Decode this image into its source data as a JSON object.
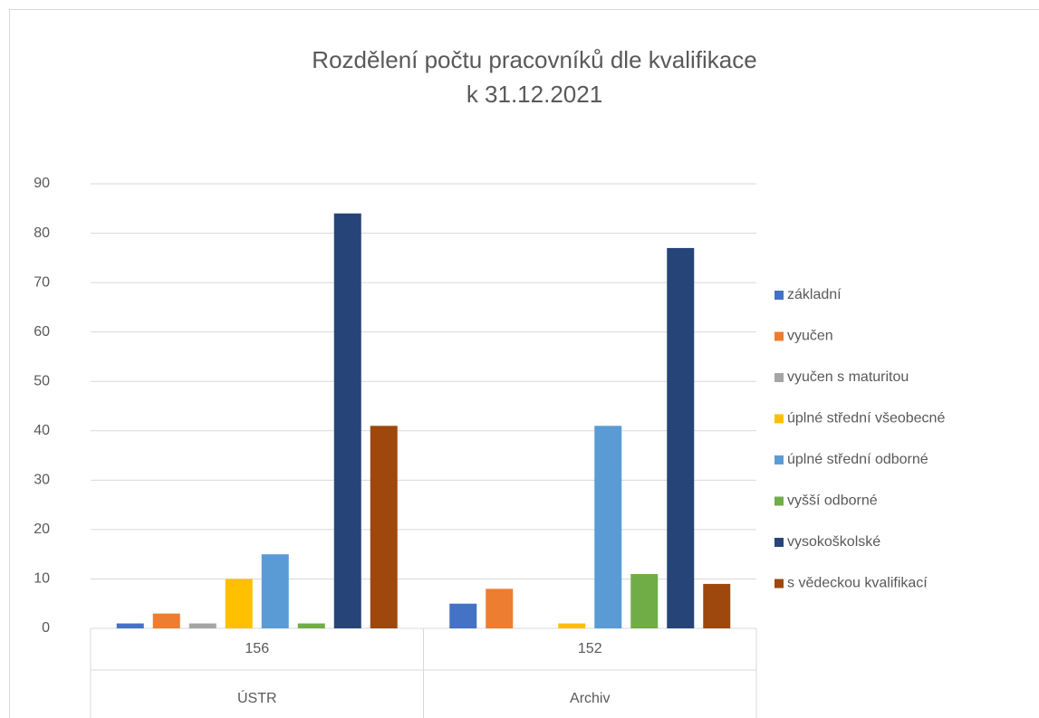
{
  "chart_data": {
    "type": "bar",
    "title": [
      "Rozdělení počtu pracovníků dle kvalifikace",
      "k 31.12.2021"
    ],
    "categories": [
      "156",
      "152"
    ],
    "category_groups": [
      "ÚSTR",
      "Archiv"
    ],
    "series": [
      {
        "name": "základní",
        "color": "#4472c4",
        "values": [
          1,
          5
        ]
      },
      {
        "name": "vyučen",
        "color": "#ed7d31",
        "values": [
          3,
          8
        ]
      },
      {
        "name": "vyučen s maturitou",
        "color": "#a5a5a5",
        "values": [
          1,
          0
        ]
      },
      {
        "name": "úplné střední všeobecné",
        "color": "#ffc000",
        "values": [
          10,
          1
        ]
      },
      {
        "name": "úplné střední odborné",
        "color": "#5b9bd5",
        "values": [
          15,
          41
        ]
      },
      {
        "name": "vyšší odborné",
        "color": "#70ad47",
        "values": [
          1,
          11
        ]
      },
      {
        "name": "vysokoškolské",
        "color": "#264478",
        "values": [
          84,
          77
        ]
      },
      {
        "name": "s vědeckou kvalifikací",
        "color": "#9e480e",
        "values": [
          41,
          9
        ]
      }
    ],
    "ylim": [
      0,
      90
    ],
    "yticks": [
      0,
      10,
      20,
      30,
      40,
      50,
      60,
      70,
      80,
      90
    ],
    "grid": true,
    "legend": "right"
  }
}
